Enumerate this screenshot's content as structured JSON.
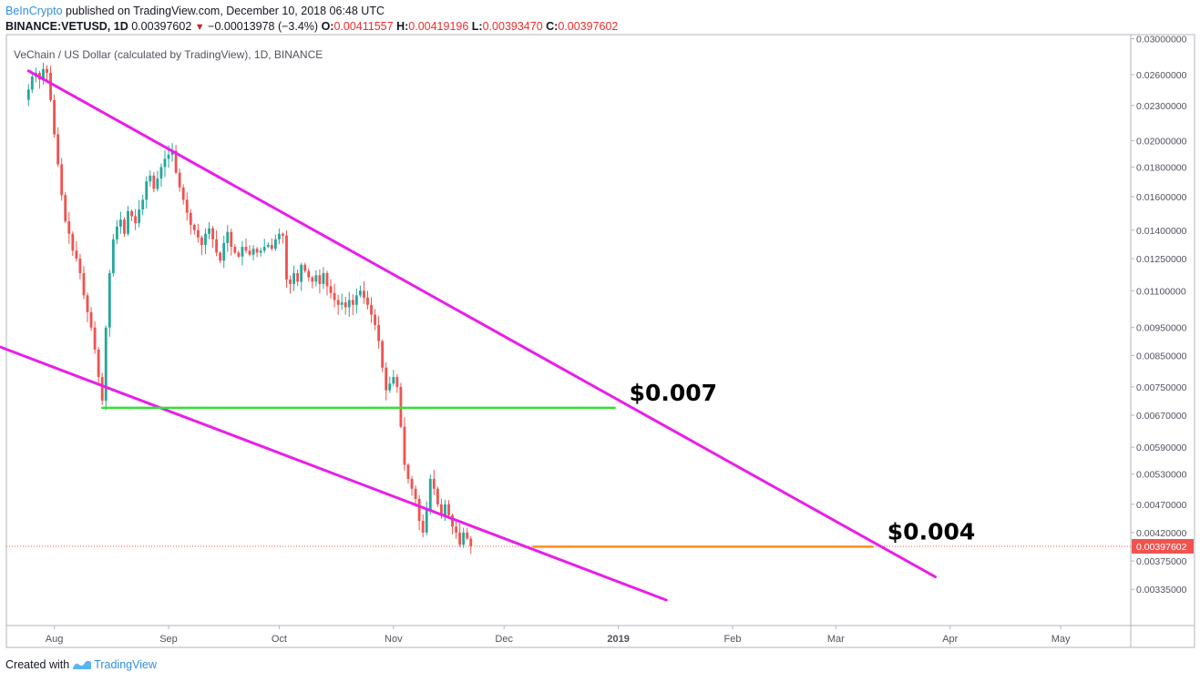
{
  "header": {
    "author": "BeInCrypto",
    "published": " published on TradingView.com, December 10, 2018 06:48 UTC",
    "symbol": "BINANCE:VETUSD, 1D",
    "last": "0.00397602",
    "change": "−0.00013978 (−3.4%)",
    "o_label": "O:",
    "o_value": "0.00411557",
    "h_label": "H:",
    "h_value": "0.00419196",
    "l_label": "L:",
    "l_value": "0.00393470",
    "c_label": "C:",
    "c_value": "0.00397602"
  },
  "footer": {
    "created_with": "Created with",
    "brand": "TradingView"
  },
  "colors": {
    "up": "#26a69a",
    "down": "#ef5350",
    "trendline": "#e91ee9",
    "support": "#33e033",
    "target": "#ff8c1a",
    "price_tag": "#ef5350"
  },
  "chart_data": {
    "type": "candlestick",
    "title": "VeChain / US Dollar (calculated by TradingView), 1D, BINANCE",
    "x_axis_labels": [
      "Aug",
      "Sep",
      "Oct",
      "Nov",
      "Dec",
      "2019",
      "Feb",
      "Mar",
      "Apr",
      "May"
    ],
    "x_range": [
      "2018-07-19",
      "2019-05-20"
    ],
    "y_scale": "log",
    "y_range": [
      0.0029,
      0.0305
    ],
    "y_ticks": [
      "0.03000000",
      "0.02600000",
      "0.02300000",
      "0.02000000",
      "0.01800000",
      "0.01600000",
      "0.01400000",
      "0.01250000",
      "0.01100000",
      "0.00950000",
      "0.00850000",
      "0.00750000",
      "0.00670000",
      "0.00590000",
      "0.00530000",
      "0.00470000",
      "0.00420000",
      "0.00375000",
      "0.00335000"
    ],
    "last_price": "0.00397602",
    "approximate_daily_closes": {
      "start": "2018-07-25",
      "closes": [
        0.0245,
        0.0258,
        0.0262,
        0.0255,
        0.0266,
        0.0262,
        0.0235,
        0.0205,
        0.0182,
        0.0161,
        0.0145,
        0.0138,
        0.0129,
        0.0125,
        0.0118,
        0.0108,
        0.0101,
        0.0095,
        0.0087,
        0.0078,
        0.0071,
        0.0095,
        0.0118,
        0.0135,
        0.0142,
        0.0146,
        0.0138,
        0.0151,
        0.0148,
        0.0144,
        0.0152,
        0.0158,
        0.017,
        0.0174,
        0.0165,
        0.0172,
        0.018,
        0.0186,
        0.0189,
        0.0192,
        0.0176,
        0.0166,
        0.0158,
        0.015,
        0.0143,
        0.014,
        0.0136,
        0.0132,
        0.0138,
        0.0141,
        0.0135,
        0.0128,
        0.0124,
        0.0133,
        0.0139,
        0.0131,
        0.0128,
        0.0126,
        0.0131,
        0.0129,
        0.0127,
        0.013,
        0.0128,
        0.0129,
        0.0131,
        0.0132,
        0.013,
        0.0135,
        0.0138,
        0.0137,
        0.0115,
        0.0113,
        0.0118,
        0.0114,
        0.0122,
        0.0119,
        0.0116,
        0.0114,
        0.0117,
        0.0113,
        0.0118,
        0.0112,
        0.0109,
        0.0106,
        0.0104,
        0.0105,
        0.0103,
        0.0106,
        0.0104,
        0.0108,
        0.011,
        0.0107,
        0.0104,
        0.01,
        0.0096,
        0.009,
        0.0081,
        0.0074,
        0.0076,
        0.0078,
        0.0075,
        0.0064,
        0.0055,
        0.0052,
        0.005,
        0.0048,
        0.0044,
        0.0042,
        0.0046,
        0.0052,
        0.005,
        0.0047,
        0.0045,
        0.0047,
        0.0045,
        0.0043,
        0.0042,
        0.004,
        0.0042,
        0.0041,
        0.0039765
      ]
    },
    "annotations": [
      {
        "type": "line",
        "from": [
          "2018-07-25",
          0.0264
        ],
        "to": [
          "2019-03-28",
          0.00352
        ],
        "label": ""
      },
      {
        "type": "line",
        "from": [
          "2018-07-17",
          0.00881
        ],
        "to": [
          "2019-01-14",
          0.00321
        ],
        "label": ""
      },
      {
        "type": "hline",
        "from": "2018-08-14",
        "to": "2018-12-31",
        "y": 0.0069,
        "label": "$0.007"
      },
      {
        "type": "hline",
        "from": "2018-12-09",
        "to": "2019-03-11",
        "y": 0.00397,
        "label": "$0.004"
      }
    ]
  }
}
